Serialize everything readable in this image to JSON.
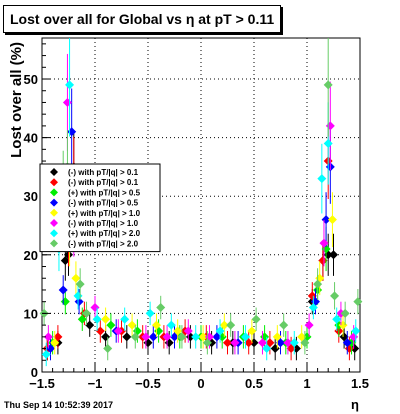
{
  "chart_data": {
    "type": "scatter",
    "title": "Lost over all for Global vs   η at pT > 0.11",
    "xlabel": "η",
    "ylabel": "Lost over all (%)",
    "xlim": [
      -1.5,
      1.5
    ],
    "ylim": [
      0,
      57
    ],
    "x_ticks": [
      "−1.5",
      "−1",
      "−0.5",
      "0",
      "0.5",
      "1",
      "1.5"
    ],
    "y_ticks": [
      "0",
      "10",
      "20",
      "30",
      "40",
      "50"
    ],
    "grid": true,
    "legend_position": "left-middle",
    "series": [
      {
        "name": "(-) with pT/|q| > 0.1",
        "color": "#000000",
        "x": [
          -1.45,
          -1.35,
          -1.28,
          -1.25,
          -1.2,
          -1.15,
          -1.05,
          -0.9,
          -0.7,
          -0.5,
          -0.3,
          -0.1,
          0.1,
          0.3,
          0.5,
          0.7,
          0.9,
          1.05,
          1.15,
          1.2,
          1.25,
          1.35,
          1.45
        ],
        "y": [
          4,
          5,
          19,
          20,
          35,
          30,
          8,
          6,
          6,
          5,
          5,
          6,
          5,
          5,
          5,
          4,
          4,
          12,
          19,
          20,
          20,
          6,
          4
        ]
      },
      {
        "name": "(-) with pT/|q| > 0.1",
        "color": "#ff0000",
        "x": [
          -1.45,
          -1.35,
          -1.25,
          -1.2,
          -1.1,
          -0.95,
          -0.75,
          -0.55,
          -0.35,
          -0.15,
          0.05,
          0.25,
          0.45,
          0.65,
          0.85,
          1.05,
          1.15,
          1.2,
          1.3,
          1.4
        ],
        "y": [
          4,
          6,
          22,
          34,
          10,
          7,
          7,
          6,
          6,
          7,
          6,
          5,
          5,
          5,
          4,
          13,
          19,
          36,
          7,
          4
        ]
      },
      {
        "name": "(+) with pT/|q| > 0.5",
        "color": "#00ee00",
        "x": [
          -1.4,
          -1.28,
          -1.22,
          -1.12,
          -0.85,
          -0.6,
          -0.4,
          -0.2,
          0.0,
          0.2,
          0.4,
          0.6,
          0.8,
          1.0,
          1.1,
          1.18,
          1.3,
          1.42
        ],
        "y": [
          5,
          12,
          30,
          9,
          8,
          7,
          7,
          6,
          6,
          6,
          6,
          6,
          5,
          6,
          14,
          21,
          8,
          5
        ]
      },
      {
        "name": "(-) with pT/|q| > 0.5",
        "color": "#0000ff",
        "x": [
          -1.42,
          -1.3,
          -1.22,
          -1.15,
          -0.8,
          -0.45,
          -0.25,
          0.15,
          0.35,
          0.75,
          1.08,
          1.18,
          1.22,
          1.38
        ],
        "y": [
          4,
          14,
          41,
          12,
          7,
          6,
          6,
          6,
          5,
          5,
          12,
          26,
          35,
          5
        ]
      },
      {
        "name": "(+) with pT/|q| > 1.0",
        "color": "#ffff00",
        "x": [
          -1.38,
          -1.24,
          -1.18,
          -0.9,
          -0.65,
          -0.42,
          -0.22,
          0.02,
          0.22,
          0.48,
          0.72,
          0.95,
          1.12,
          1.24,
          1.34
        ],
        "y": [
          5,
          22,
          16,
          9,
          8,
          8,
          7,
          6,
          8,
          7,
          6,
          6,
          16,
          26,
          8
        ]
      },
      {
        "name": "(-) with pT/|q| > 1.0",
        "color": "#ff00ff",
        "x": [
          -1.44,
          -1.26,
          -1.2,
          -1.0,
          -0.78,
          -0.52,
          -0.32,
          -0.12,
          0.08,
          0.32,
          0.58,
          0.82,
          1.02,
          1.16,
          1.22,
          1.32,
          1.44
        ],
        "y": [
          6,
          46,
          24,
          11,
          7,
          6,
          6,
          7,
          6,
          5,
          5,
          5,
          8,
          22,
          42,
          10,
          6
        ]
      },
      {
        "name": "(+) with pT/|q| > 2.0",
        "color": "#00ffff",
        "x": [
          -1.46,
          -1.34,
          -1.24,
          -1.16,
          -0.98,
          -0.72,
          -0.48,
          -0.28,
          -0.05,
          0.18,
          0.42,
          0.62,
          0.88,
          1.06,
          1.14,
          1.2,
          1.28,
          1.46
        ],
        "y": [
          3,
          21,
          49,
          13,
          9,
          9,
          10,
          8,
          6,
          7,
          6,
          4,
          5,
          11,
          33,
          39,
          9,
          7
        ]
      },
      {
        "name": "(-) with pT/|q| > 2.0",
        "color": "#66cc66",
        "x": [
          -1.48,
          -1.3,
          -1.26,
          -1.14,
          -1.08,
          -0.88,
          -0.62,
          -0.38,
          -0.18,
          0.06,
          0.28,
          0.52,
          0.78,
          0.98,
          1.1,
          1.2,
          1.26,
          1.36,
          1.48
        ],
        "y": [
          10,
          32,
          35,
          15,
          10,
          4,
          6,
          11,
          6,
          5,
          8,
          9,
          8,
          5,
          15,
          49,
          13,
          10,
          12
        ]
      }
    ]
  },
  "footer": {
    "date": "Thu Sep 14 10:52:39 2017"
  }
}
